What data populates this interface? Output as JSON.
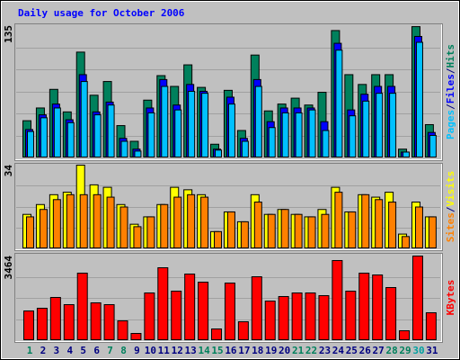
{
  "chart_data": [
    {
      "type": "bar",
      "title": "Daily usage for October 2006",
      "ylim": [
        0,
        135
      ],
      "yticks": [
        135
      ],
      "legend_separator": "/",
      "series": [
        {
          "name": "Hits",
          "color": "#00805c",
          "values": [
            38,
            51,
            70,
            47,
            108,
            64,
            78,
            33,
            17,
            59,
            84,
            73,
            95,
            72,
            14,
            69,
            28,
            105,
            48,
            55,
            61,
            54,
            67,
            130,
            85,
            75,
            85,
            85,
            9,
            134,
            34
          ]
        },
        {
          "name": "Files",
          "color": "#0000ff",
          "values": [
            29,
            44,
            55,
            39,
            85,
            47,
            57,
            20,
            9,
            51,
            80,
            54,
            75,
            68,
            9,
            62,
            20,
            80,
            37,
            51,
            51,
            51,
            37,
            117,
            49,
            65,
            73,
            73,
            6,
            124,
            26
          ]
        },
        {
          "name": "Pages",
          "color": "#00c0ff",
          "values": [
            27,
            41,
            51,
            36,
            78,
            44,
            54,
            17,
            7,
            46,
            73,
            49,
            68,
            66,
            8,
            55,
            17,
            73,
            31,
            46,
            46,
            49,
            28,
            110,
            43,
            58,
            66,
            66,
            6,
            118,
            23
          ]
        }
      ]
    },
    {
      "type": "bar",
      "ylim": [
        0,
        34
      ],
      "yticks": [
        34
      ],
      "legend_separator": "/",
      "series": [
        {
          "name": "Visits",
          "color": "#ffff00",
          "values": [
            14,
            18,
            22,
            23,
            34,
            26,
            25,
            18,
            10,
            13,
            18,
            25,
            24,
            22,
            7,
            15,
            11,
            22,
            14,
            16,
            14,
            13,
            16,
            25,
            15,
            22,
            21,
            23,
            6,
            19,
            13
          ]
        },
        {
          "name": "Sites",
          "color": "#ff8000",
          "values": [
            13,
            16,
            20,
            22,
            22,
            22,
            21,
            17,
            9,
            13,
            18,
            21,
            22,
            21,
            7,
            15,
            11,
            19,
            14,
            16,
            14,
            13,
            14,
            23,
            15,
            22,
            20,
            19,
            5,
            17,
            13
          ]
        }
      ]
    },
    {
      "type": "bar",
      "ylim": [
        0,
        3464
      ],
      "yticks": [
        3464
      ],
      "categories": [
        "1",
        "2",
        "3",
        "4",
        "5",
        "6",
        "7",
        "8",
        "9",
        "10",
        "11",
        "12",
        "13",
        "14",
        "15",
        "16",
        "17",
        "18",
        "19",
        "20",
        "21",
        "22",
        "23",
        "24",
        "25",
        "26",
        "27",
        "28",
        "29",
        "30",
        "31"
      ],
      "category_colors": [
        "#00805c",
        "#000080",
        "#000080",
        "#000080",
        "#000080",
        "#000080",
        "#00805c",
        "#00805c",
        "#000080",
        "#000080",
        "#000080",
        "#000080",
        "#000080",
        "#00805c",
        "#00805c",
        "#000080",
        "#000080",
        "#000080",
        "#000080",
        "#000080",
        "#00805c",
        "#00805c",
        "#000080",
        "#000080",
        "#000080",
        "#000080",
        "#000080",
        "#00805c",
        "#00805c",
        "#00a0a0",
        "#000080"
      ],
      "series": [
        {
          "name": "KBytes",
          "color": "#ff0000",
          "values": [
            1216,
            1327,
            1769,
            1474,
            2764,
            1548,
            1474,
            811,
            295,
            1953,
            2985,
            2027,
            2727,
            2395,
            479,
            2358,
            774,
            2616,
            1621,
            1806,
            1953,
            1953,
            1843,
            3280,
            2027,
            2764,
            2690,
            2174,
            405,
            3464,
            1142
          ]
        }
      ]
    }
  ]
}
